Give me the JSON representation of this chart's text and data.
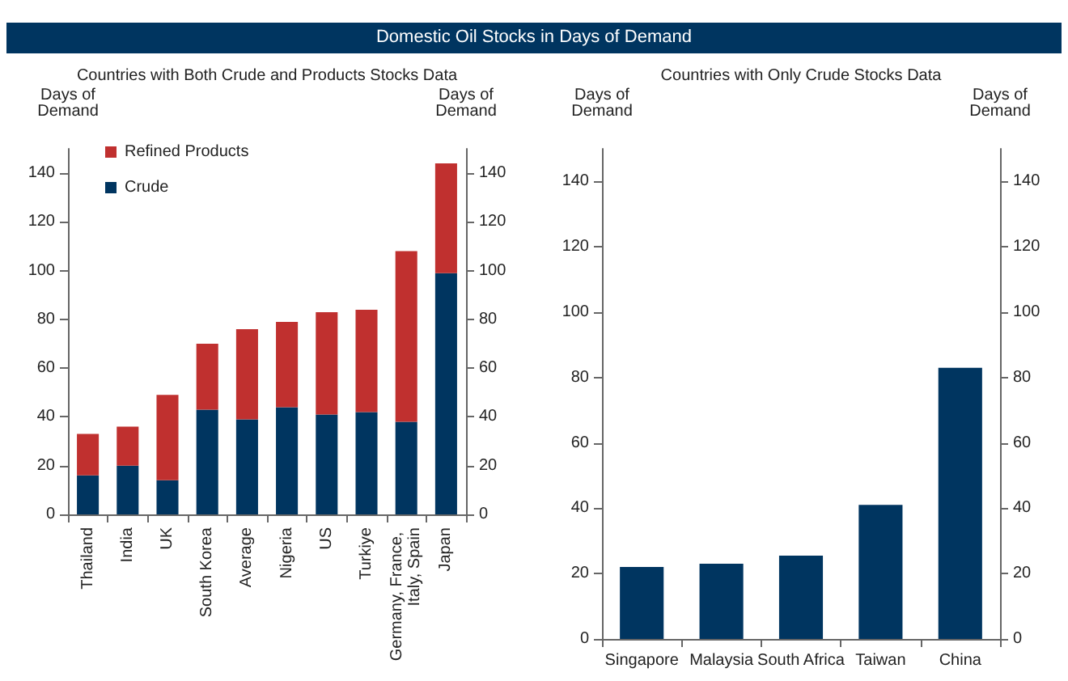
{
  "chart_data": [
    {
      "type": "bar",
      "title": "Countries with Both Crude and Products Stocks Data",
      "annotations": [
        "Domestic Oil Stocks in Days of Demand"
      ],
      "ylabel": "Days of Demand",
      "y2label": "Days of Demand",
      "categories": [
        "Thailand",
        "India",
        "UK",
        "South Korea",
        "Average",
        "Nigeria",
        "US",
        "Turkiye",
        "Germany, France, Italy, Spain",
        "Japan"
      ],
      "stacked": true,
      "series": [
        {
          "name": "Crude",
          "color": "#003560",
          "values": [
            16,
            20,
            14,
            43,
            39,
            44,
            41,
            42,
            38,
            99
          ]
        },
        {
          "name": "Refined Products",
          "color": "#c0302f",
          "values": [
            17,
            16,
            35,
            27,
            37,
            35,
            42,
            42,
            70,
            45
          ]
        }
      ],
      "ylim": [
        0,
        150
      ],
      "yticks": [
        0,
        20,
        40,
        60,
        80,
        100,
        120,
        140
      ],
      "y2lim": [
        0,
        150
      ],
      "y2ticks": [
        0,
        20,
        40,
        60,
        80,
        100,
        120,
        140
      ],
      "grid": false,
      "legend": "top left"
    },
    {
      "type": "bar",
      "title": "Countries with Only Crude Stocks Data",
      "ylabel": "Days of Demand",
      "y2label": "Days of Demand",
      "categories": [
        "Singapore",
        "Malaysia",
        "South Africa",
        "Taiwan",
        "China"
      ],
      "series": [
        {
          "color": "#003560",
          "values": [
            22,
            23,
            25.5,
            41,
            83
          ]
        }
      ],
      "ylim": [
        0,
        150
      ],
      "yticks": [
        0,
        20,
        40,
        60,
        80,
        100,
        120,
        140
      ],
      "y2lim": [
        0,
        150
      ],
      "y2ticks": [
        0,
        20,
        40,
        60,
        80,
        100,
        120,
        140
      ],
      "grid": false,
      "legend": false
    }
  ]
}
